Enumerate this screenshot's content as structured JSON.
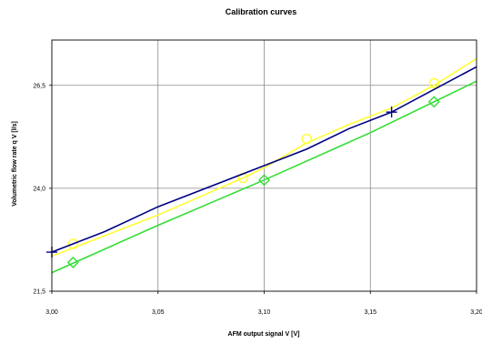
{
  "chart_data": {
    "type": "line",
    "title": "Calibration curves",
    "xlabel": "AFM output signal V [V]",
    "ylabel": "Volumetric flow rate q V [l/s]",
    "xlim": [
      3.0,
      3.2
    ],
    "ylim": [
      21.5,
      27.6
    ],
    "x_ticks": [
      3.0,
      3.05,
      3.1,
      3.15,
      3.2
    ],
    "x_tick_labels": [
      "3,00",
      "3,05",
      "3,10",
      "3,15",
      "3,20"
    ],
    "y_ticks": [
      21.5,
      24.0,
      26.5
    ],
    "y_tick_labels": [
      "21,5",
      "24,0",
      "26,5"
    ],
    "grid": true,
    "legend": "none",
    "series": [
      {
        "color": "#ffff33",
        "marker": "circle",
        "line": [
          [
            3.0,
            22.35
          ],
          [
            3.05,
            23.35
          ],
          [
            3.09,
            24.25
          ],
          [
            3.1,
            24.5
          ],
          [
            3.12,
            25.1
          ],
          [
            3.14,
            25.55
          ],
          [
            3.16,
            25.95
          ],
          [
            3.18,
            26.5
          ],
          [
            3.2,
            27.15
          ]
        ],
        "points": [
          [
            3.01,
            22.65
          ],
          [
            3.09,
            24.25
          ],
          [
            3.12,
            25.2
          ],
          [
            3.18,
            26.55
          ]
        ]
      },
      {
        "color": "#000080",
        "marker": "plus",
        "line": [
          [
            3.0,
            22.45
          ],
          [
            3.025,
            22.95
          ],
          [
            3.05,
            23.55
          ],
          [
            3.1,
            24.55
          ],
          [
            3.12,
            24.95
          ],
          [
            3.14,
            25.45
          ],
          [
            3.16,
            25.85
          ],
          [
            3.2,
            26.95
          ]
        ],
        "points": [
          [
            3.0,
            22.45
          ],
          [
            3.16,
            25.85
          ]
        ]
      },
      {
        "color": "#33dd33",
        "marker": "diamond",
        "line": [
          [
            3.0,
            21.95
          ],
          [
            3.05,
            23.1
          ],
          [
            3.1,
            24.2
          ],
          [
            3.15,
            25.35
          ],
          [
            3.2,
            26.6
          ]
        ],
        "points": [
          [
            3.01,
            22.2
          ],
          [
            3.1,
            24.2
          ],
          [
            3.18,
            26.1
          ]
        ]
      }
    ]
  }
}
